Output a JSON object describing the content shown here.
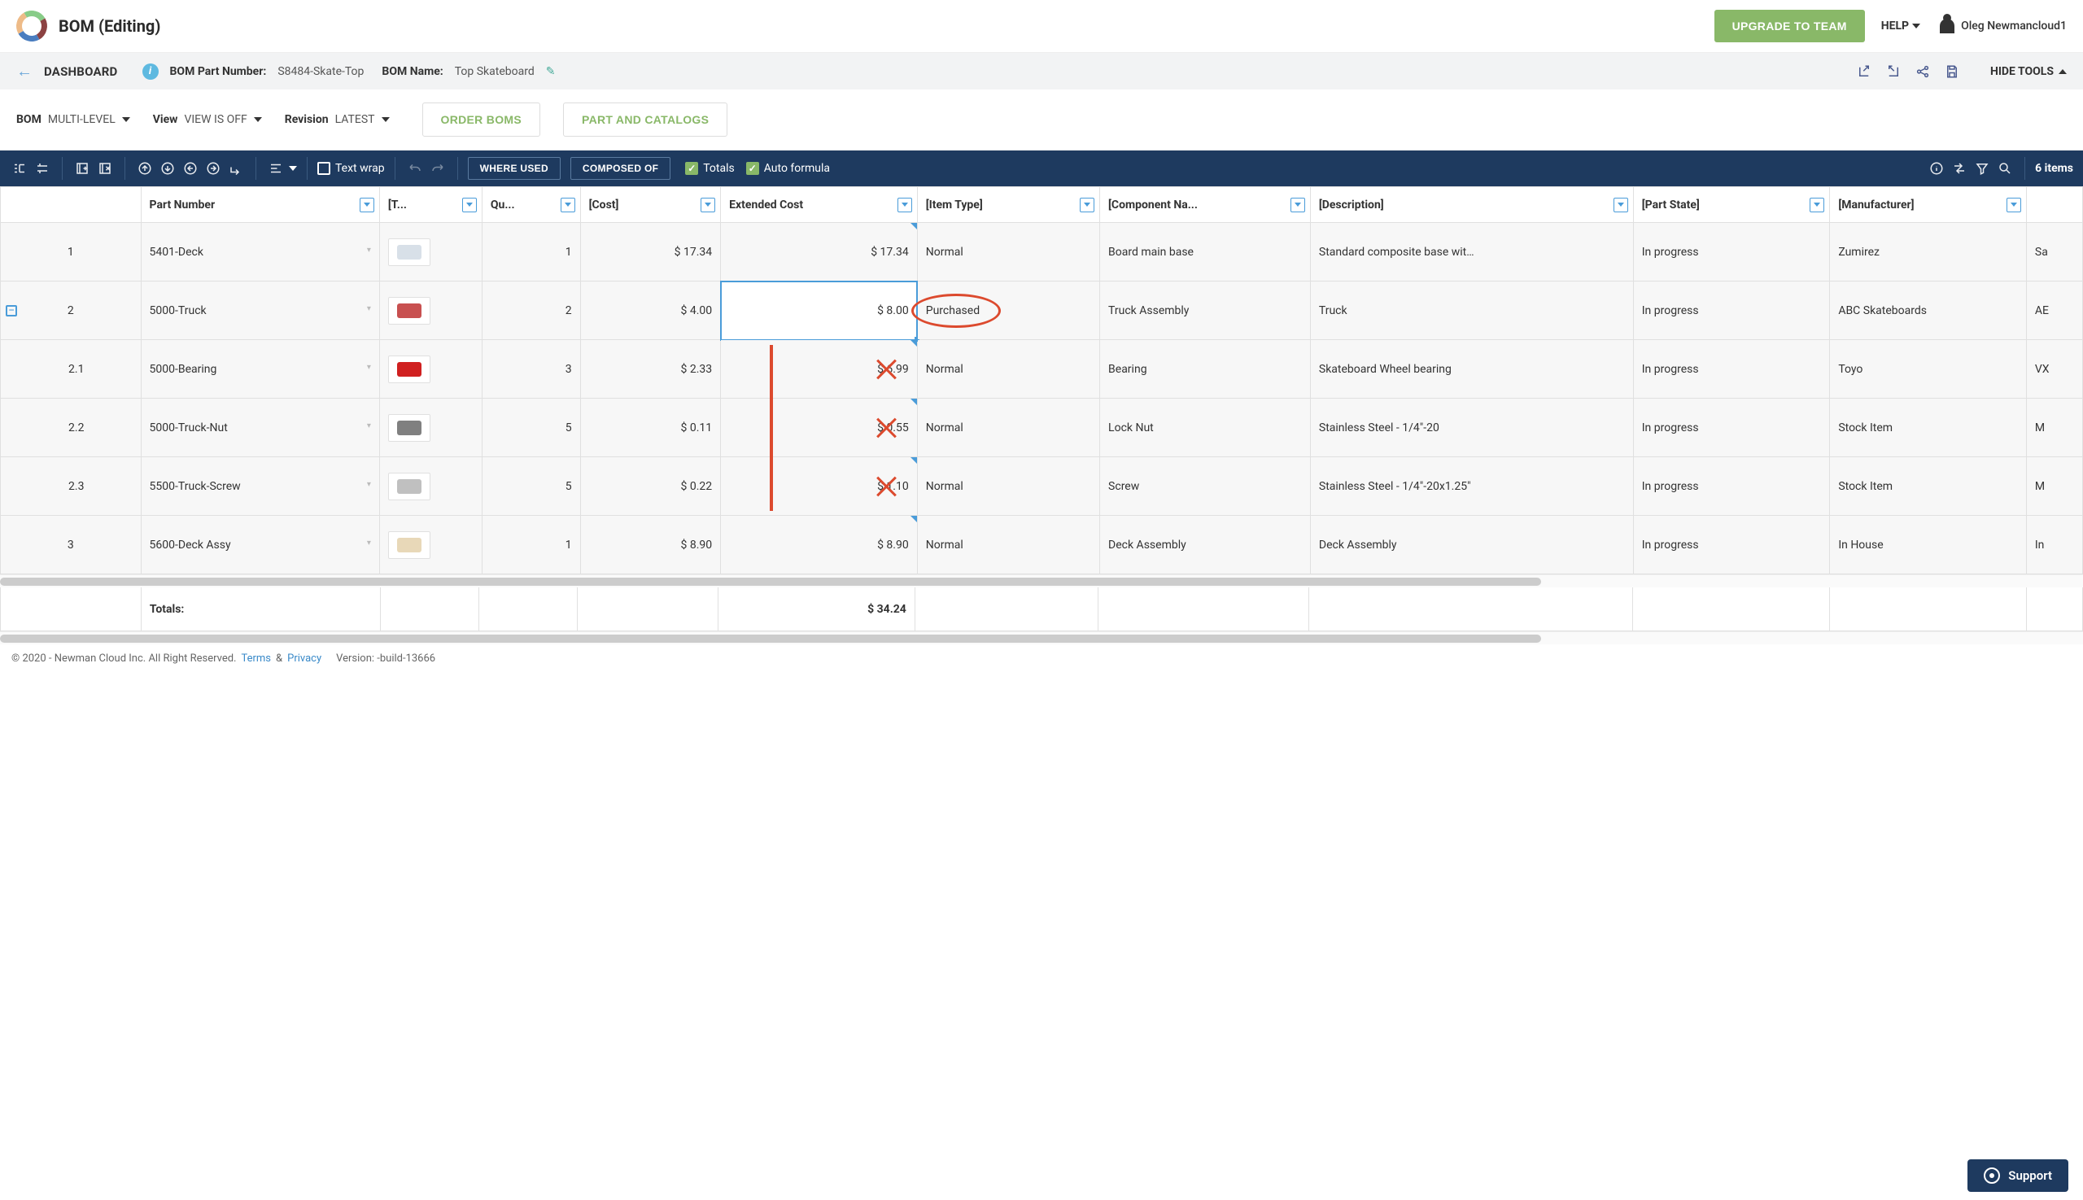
{
  "header": {
    "page_title": "BOM (Editing)",
    "upgrade_label": "UPGRADE TO TEAM",
    "help_label": "HELP",
    "user_name": "Oleg Newmancloud1"
  },
  "subheader": {
    "dashboard_label": "DASHBOARD",
    "bom_pn_label": "BOM Part Number:",
    "bom_pn_value": "S8484-Skate-Top",
    "bom_name_label": "BOM Name:",
    "bom_name_value": "Top Skateboard",
    "hide_tools_label": "HIDE TOOLS"
  },
  "controls": {
    "bom_label": "BOM",
    "bom_value": "MULTI-LEVEL",
    "view_label": "View",
    "view_value": "VIEW IS OFF",
    "revision_label": "Revision",
    "revision_value": "LATEST",
    "order_boms_label": "ORDER BOMS",
    "part_catalogs_label": "PART AND CATALOGS"
  },
  "toolbar": {
    "text_wrap_label": "Text wrap",
    "where_used_label": "WHERE USED",
    "composed_of_label": "COMPOSED OF",
    "totals_label": "Totals",
    "auto_formula_label": "Auto formula",
    "items_count_label": "6 items"
  },
  "columns": [
    "",
    "Part Number",
    "[T...",
    "Qu...",
    "[Cost]",
    "Extended Cost",
    "[Item Type]",
    "[Component Na...",
    "[Description]",
    "[Part State]",
    "[Manufacturer]",
    ""
  ],
  "rows": [
    {
      "idx": "1",
      "pn": "5401-Deck",
      "qty": "1",
      "cost": "$ 17.34",
      "ext": "$ 17.34",
      "type": "Normal",
      "comp": "Board main base",
      "desc": "Standard composite base wit…",
      "state": "In progress",
      "mfg": "Zumirez",
      "extra": "Sa"
    },
    {
      "idx": "2",
      "pn": "5000-Truck",
      "qty": "2",
      "cost": "$ 4.00",
      "ext": "$ 8.00",
      "type": "Purchased",
      "comp": "Truck Assembly",
      "desc": "Truck",
      "state": "In progress",
      "mfg": "ABC Skateboards",
      "extra": "AE",
      "expandable": true,
      "selected_ext": true,
      "type_circled": true
    },
    {
      "idx": "2.1",
      "pn": "5000-Bearing",
      "qty": "3",
      "cost": "$ 2.33",
      "ext": "$ 6.99",
      "type": "Normal",
      "comp": "Bearing",
      "desc": "Skateboard Wheel bearing",
      "state": "In progress",
      "mfg": "Toyo",
      "extra": "VX",
      "child": true,
      "x_ext": true
    },
    {
      "idx": "2.2",
      "pn": "5000-Truck-Nut",
      "qty": "5",
      "cost": "$ 0.11",
      "ext": "$ 0.55",
      "type": "Normal",
      "comp": "Lock Nut",
      "desc": "Stainless Steel - 1/4\"-20",
      "state": "In progress",
      "mfg": "Stock Item",
      "extra": "M",
      "child": true,
      "x_ext": true
    },
    {
      "idx": "2.3",
      "pn": "5500-Truck-Screw",
      "qty": "5",
      "cost": "$ 0.22",
      "ext": "$ 1.10",
      "type": "Normal",
      "comp": "Screw",
      "desc": "Stainless Steel - 1/4\"-20x1.25\"",
      "state": "In progress",
      "mfg": "Stock Item",
      "extra": "M",
      "child": true,
      "x_ext": true
    },
    {
      "idx": "3",
      "pn": "5600-Deck Assy",
      "qty": "1",
      "cost": "$ 8.90",
      "ext": "$ 8.90",
      "type": "Normal",
      "comp": "Deck Assembly",
      "desc": "Deck Assembly",
      "state": "In progress",
      "mfg": "In House",
      "extra": "In"
    }
  ],
  "totals": {
    "label": "Totals:",
    "ext": "$ 34.24"
  },
  "thumb_colors": {
    "1": "#d8e0e8",
    "2": "#c85050",
    "2.1": "#d02020",
    "2.2": "#808080",
    "2.3": "#c0c0c0",
    "3": "#e8d8b8"
  },
  "footer": {
    "copyright": "© 2020 - Newman Cloud Inc. All Right Reserved.",
    "terms_label": "Terms",
    "and_label": "&",
    "privacy_label": "Privacy",
    "version_label": "Version: -build-13666",
    "support_label": "Support"
  },
  "colors": {
    "accent_green": "#89b868",
    "toolbar_bg": "#1e3a5f",
    "filter_blue": "#4a9cd9",
    "annotation_red": "#dc4a2e"
  }
}
